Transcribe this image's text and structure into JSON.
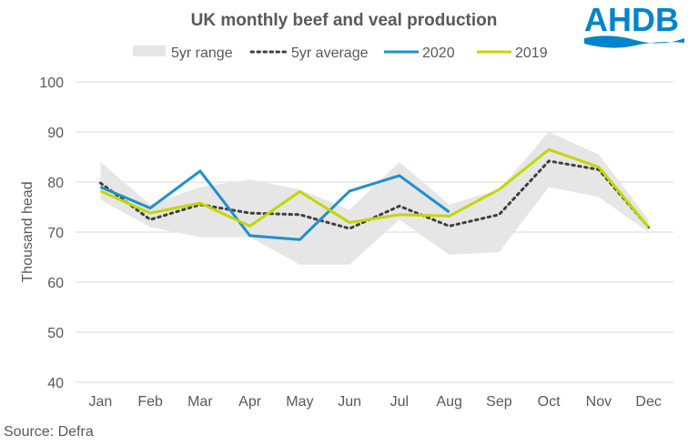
{
  "logo": {
    "text": "AHDB",
    "color": "#0085CA"
  },
  "source": "Source: Defra",
  "chart_data": {
    "type": "line",
    "title": "UK monthly beef and veal production",
    "xlabel": "",
    "ylabel": "Thousand head",
    "ylim": [
      40,
      100
    ],
    "yticks": [
      40,
      50,
      60,
      70,
      80,
      90,
      100
    ],
    "grid": true,
    "legend_position": "top",
    "categories": [
      "Jan",
      "Feb",
      "Mar",
      "Apr",
      "May",
      "Jun",
      "Jul",
      "Aug",
      "Sep",
      "Oct",
      "Nov",
      "Dec"
    ],
    "range": {
      "name": "5yr range",
      "color": "#E6E6E6",
      "low": [
        76.5,
        71,
        69,
        69,
        63.5,
        63.5,
        72.5,
        65.5,
        66,
        79,
        77,
        70
      ],
      "high": [
        84,
        75.5,
        79,
        80.5,
        78.5,
        74.5,
        84,
        75.5,
        78.5,
        90,
        85.5,
        72.5
      ]
    },
    "series": [
      {
        "name": "5yr average",
        "color": "#404040",
        "style": "dotted",
        "values": [
          79.8,
          72.5,
          75.5,
          73.8,
          73.5,
          70.7,
          75.2,
          71.2,
          73.5,
          84.2,
          82.5,
          71
        ]
      },
      {
        "name": "2020",
        "color": "#1F8FCE",
        "style": "solid",
        "values": [
          79,
          74.8,
          82.2,
          69.3,
          68.5,
          78.2,
          81.3,
          74,
          null,
          null,
          null,
          null
        ]
      },
      {
        "name": "2019",
        "color": "#C4D600",
        "style": "solid",
        "values": [
          78.2,
          73.8,
          75.8,
          71.2,
          78.1,
          71.9,
          73.5,
          73.2,
          78.5,
          86.5,
          83,
          71
        ]
      }
    ]
  }
}
